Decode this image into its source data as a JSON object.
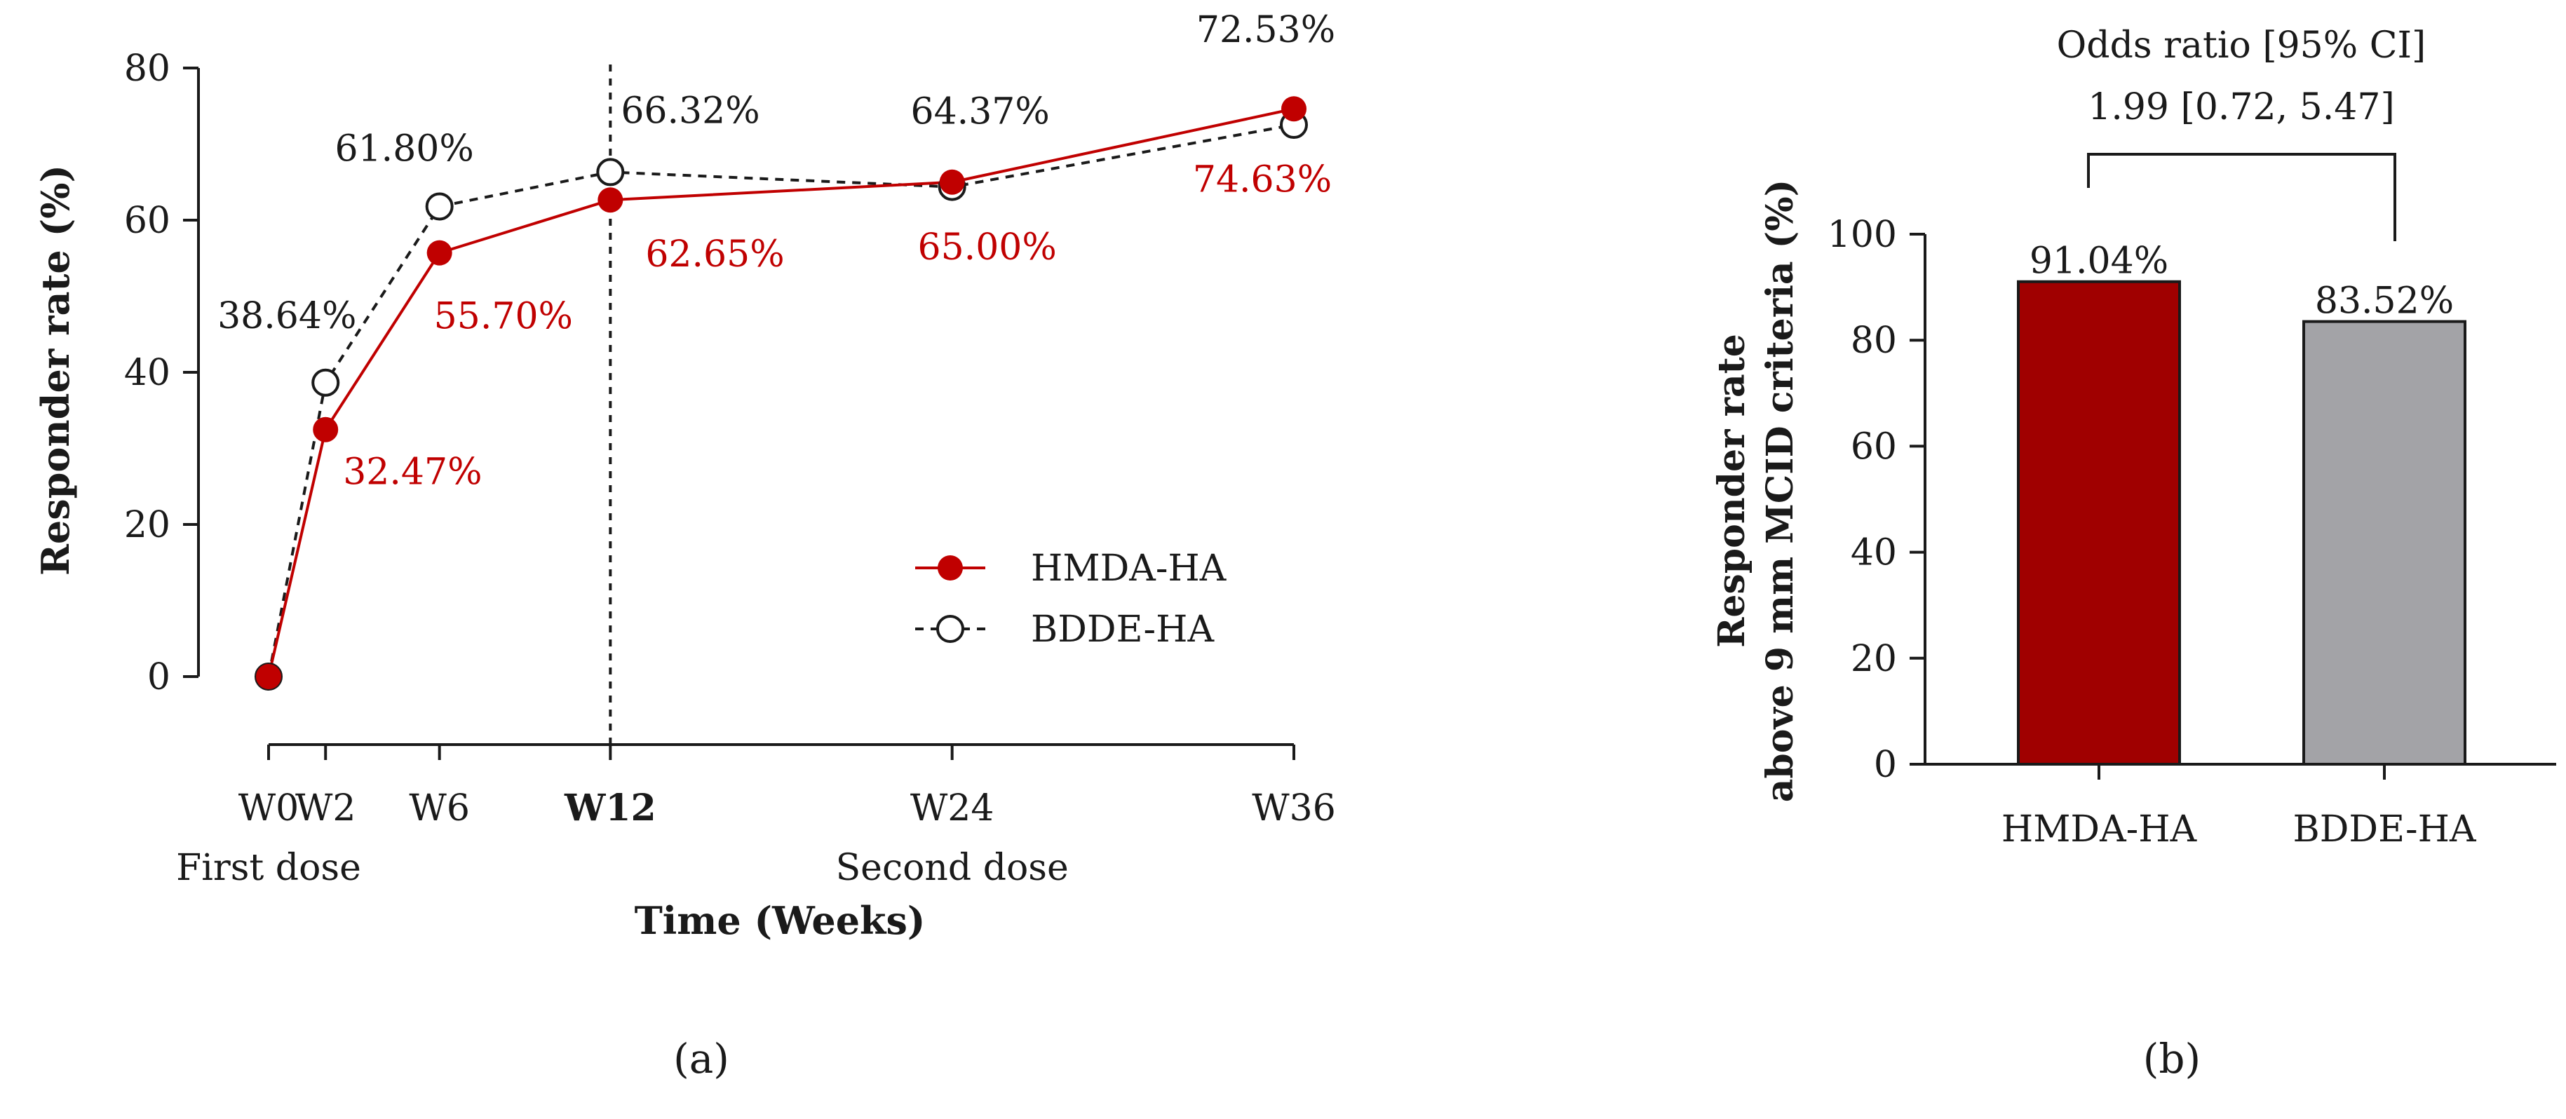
{
  "chart_data": [
    {
      "panel_label": "(a)",
      "type": "line",
      "xlabel": "Time (Weeks)",
      "ylabel": "Responder rate (%)",
      "ylim": [
        0,
        80
      ],
      "yticks": [
        0,
        20,
        40,
        60,
        80
      ],
      "xticks": [
        {
          "value": 0,
          "label": "W0",
          "bold": false
        },
        {
          "value": 2,
          "label": "W2",
          "bold": false
        },
        {
          "value": 6,
          "label": "W6",
          "bold": false
        },
        {
          "value": 12,
          "label": "W12",
          "bold": true
        },
        {
          "value": 24,
          "label": "W24",
          "bold": false
        },
        {
          "value": 36,
          "label": "W36",
          "bold": false
        }
      ],
      "dose_annotations": [
        {
          "week": 0,
          "text": "First dose"
        },
        {
          "week": 24,
          "text": "Second dose"
        }
      ],
      "reference_line_week": 12,
      "legend_position": "center-right",
      "series": [
        {
          "name": "HMDA-HA",
          "color": "#c00000",
          "marker": "filled-circle",
          "line_style": "solid",
          "x": [
            0,
            2,
            6,
            12,
            24,
            36
          ],
          "values": [
            0,
            32.47,
            55.7,
            62.65,
            65.0,
            74.63
          ],
          "labels": [
            null,
            "32.47%",
            "55.70%",
            "62.65%",
            "65.00%",
            "74.63%"
          ]
        },
        {
          "name": "BDDE-HA",
          "color": "#1a1a1a",
          "marker": "open-circle",
          "line_style": "dashed",
          "x": [
            0,
            2,
            6,
            12,
            24,
            36
          ],
          "values": [
            0,
            38.64,
            61.8,
            66.32,
            64.37,
            72.53
          ],
          "labels": [
            null,
            "38.64%",
            "61.80%",
            "66.32%",
            "64.37%",
            "72.53%"
          ]
        }
      ]
    },
    {
      "panel_label": "(b)",
      "type": "bar",
      "ylabel_line1": "Responder rate",
      "ylabel_line2": "above 9 mm MCID criteria (%)",
      "ylim": [
        0,
        100
      ],
      "yticks": [
        0,
        20,
        40,
        60,
        80,
        100
      ],
      "categories": [
        "HMDA-HA",
        "BDDE-HA"
      ],
      "values": [
        91.04,
        83.52
      ],
      "value_labels": [
        "91.04%",
        "83.52%"
      ],
      "colors": [
        "#a00000",
        "#a3a3a7"
      ],
      "bracket_title": "Odds ratio [95% CI]",
      "bracket_value": "1.99 [0.72, 5.47]"
    }
  ]
}
